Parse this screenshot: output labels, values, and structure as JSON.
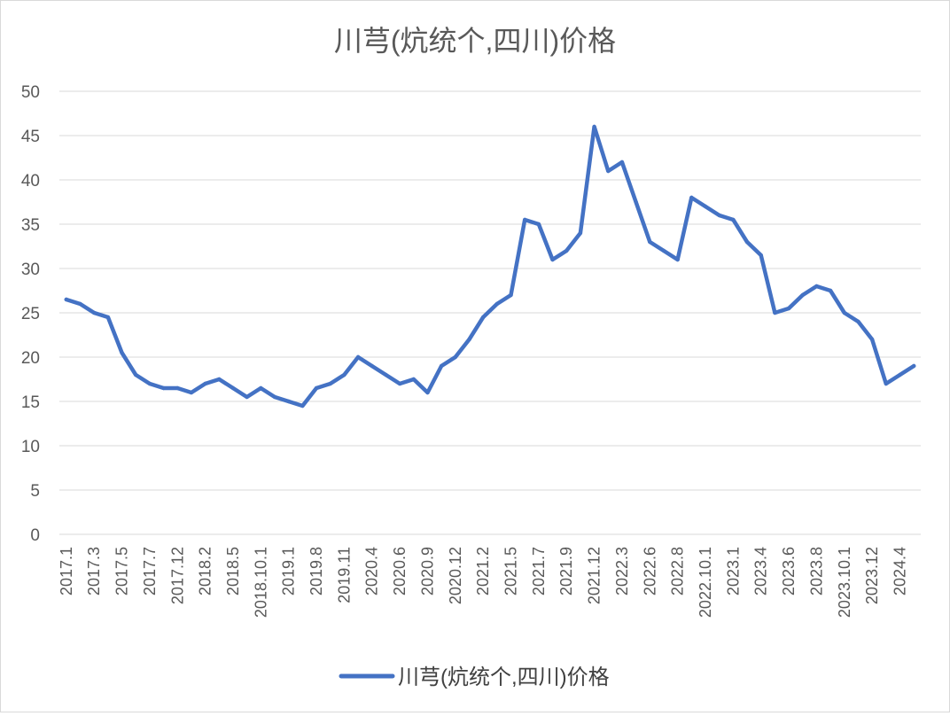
{
  "chart_data": {
    "type": "line",
    "title": "川芎(炕统个,四川)价格",
    "xlabel": "",
    "ylabel": "",
    "ylim": [
      0,
      50
    ],
    "yticks": [
      0,
      5,
      10,
      15,
      20,
      25,
      30,
      35,
      40,
      45,
      50
    ],
    "grid": true,
    "legend_position": "bottom",
    "colors": {
      "line": "#4472c4",
      "grid": "#d9d9d9",
      "text": "#595959"
    },
    "categories": [
      "2017.1",
      "",
      "2017.3",
      "",
      "2017.5",
      "",
      "2017.7",
      "",
      "2017.12",
      "",
      "2018.2",
      "",
      "2018.5",
      "",
      "2018.10.1",
      "",
      "2019.1",
      "",
      "2019.8",
      "",
      "2019.11",
      "",
      "2020.4",
      "",
      "2020.6",
      "",
      "2020.9",
      "",
      "2020.12",
      "",
      "2021.2",
      "",
      "2021.5",
      "",
      "2021.7",
      "",
      "2021.9",
      "",
      "2021.12",
      "",
      "2022.3",
      "",
      "2022.6",
      "",
      "2022.8",
      "",
      "2022.10.1",
      "",
      "2023.1",
      "",
      "2023.4",
      "",
      "2023.6",
      "",
      "2023.8",
      "",
      "2023.10.1",
      "",
      "2023.12",
      "",
      "2024.4",
      ""
    ],
    "series": [
      {
        "name": "川芎(炕统个,四川)价格",
        "values": [
          26.5,
          26,
          25,
          24.5,
          20.5,
          18,
          17,
          16.5,
          16.5,
          16,
          17,
          17.5,
          16.5,
          15.5,
          16.5,
          15.5,
          15,
          14.5,
          16.5,
          17,
          18,
          20,
          19,
          18,
          17,
          17.5,
          16,
          19,
          20,
          22,
          24.5,
          26,
          27,
          35.5,
          35,
          31,
          32,
          34,
          46,
          41,
          42,
          37.5,
          33,
          32,
          31,
          38,
          37,
          36,
          35.5,
          33,
          31.5,
          25,
          25.5,
          27,
          28,
          27.5,
          25,
          24,
          22,
          17,
          18,
          19
        ]
      }
    ]
  }
}
